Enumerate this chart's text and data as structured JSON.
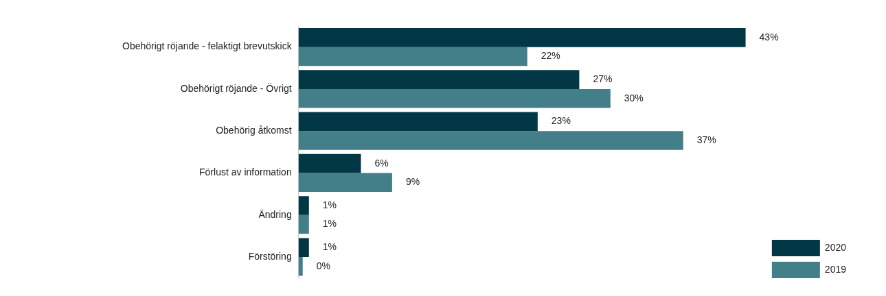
{
  "chart_data": {
    "type": "bar",
    "orientation": "horizontal",
    "categories": [
      "Obehörigt röjande - felaktigt brevutskick",
      "Obehörigt röjande - Övrigt",
      "Obehörig åtkomst",
      "Förlust av information",
      "Ändring",
      "Förstöring"
    ],
    "series": [
      {
        "name": "2020",
        "color": "#023746",
        "values": [
          43,
          27,
          23,
          6,
          1,
          1
        ],
        "value_labels": [
          "43%",
          "27%",
          "23%",
          "6%",
          "1%",
          "1%"
        ]
      },
      {
        "name": "2019",
        "color": "#437f88",
        "values": [
          22,
          30,
          37,
          9,
          1,
          0.4
        ],
        "value_labels": [
          "22%",
          "30%",
          "37%",
          "9%",
          "1%",
          "0%"
        ]
      }
    ],
    "grid": false,
    "legend": "bottom right",
    "tick_labels": "y"
  }
}
